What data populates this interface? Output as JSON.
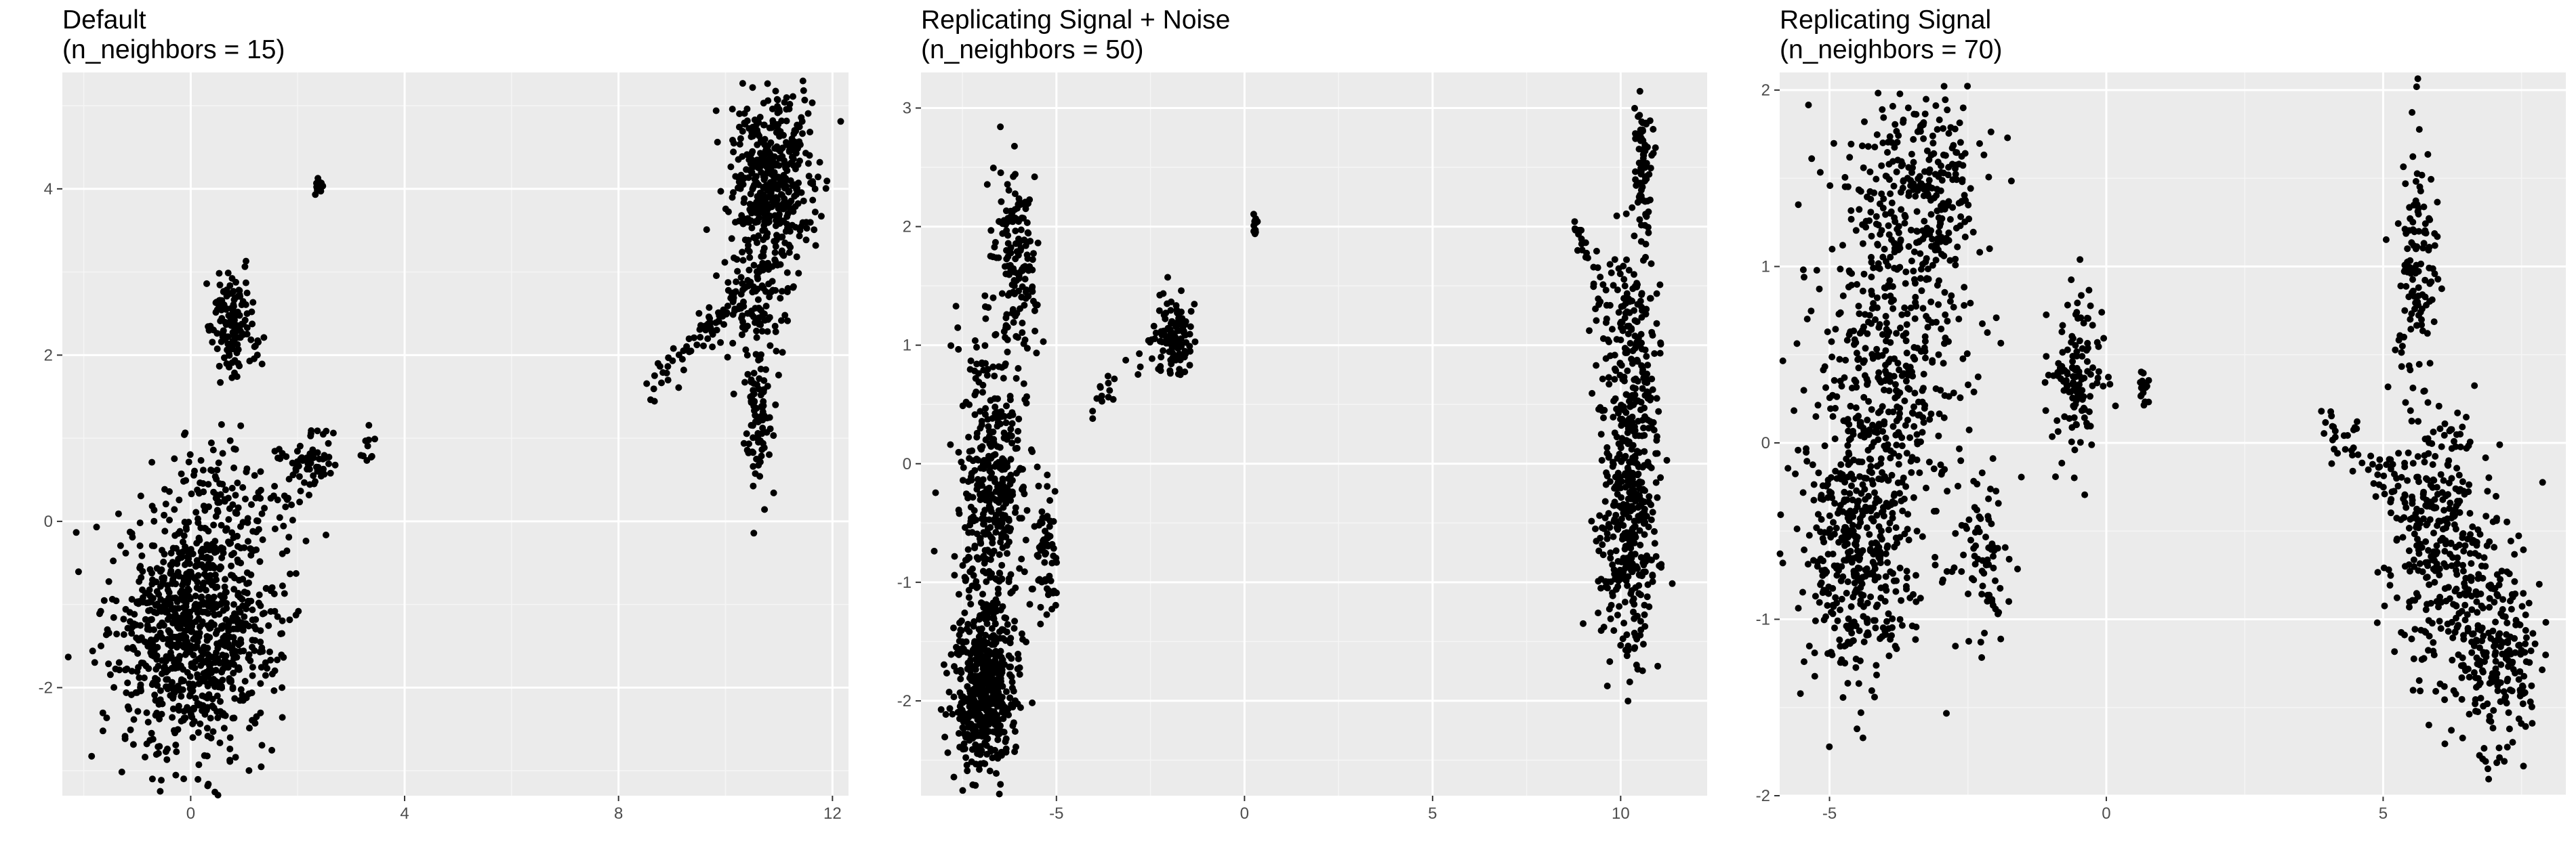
{
  "chart_data": [
    {
      "type": "scatter",
      "title": "Default",
      "subtitle": "(n_neighbors = 15)",
      "xlabel": "",
      "ylabel": "",
      "xlim": [
        -2.4,
        12.3
      ],
      "ylim": [
        -3.3,
        5.4
      ],
      "xticks": [
        0,
        4,
        8,
        12
      ],
      "xtick_labels": [
        "0",
        "4",
        "8",
        "12"
      ],
      "yticks": [
        -2,
        0,
        2,
        4
      ],
      "ytick_labels": [
        "-2",
        "0",
        "2",
        "4"
      ],
      "grid": true,
      "clusters": [
        {
          "cx": 0.1,
          "cy": -1.3,
          "sx": 0.75,
          "sy": 0.75,
          "n": 950
        },
        {
          "cx": 0.5,
          "cy": 0.4,
          "sx": 0.45,
          "sy": 0.35,
          "n": 60
        },
        {
          "cx": 0.8,
          "cy": 2.35,
          "sx": 0.22,
          "sy": 0.3,
          "n": 150
        },
        {
          "cx": 2.2,
          "cy": 0.75,
          "sx": 0.3,
          "sy": 0.2,
          "n": 60
        },
        {
          "cx": 1.5,
          "cy": 0.3,
          "sx": 0.45,
          "sy": 0.45,
          "n": 40
        },
        {
          "cx": 3.3,
          "cy": 0.9,
          "sx": 0.08,
          "sy": 0.1,
          "n": 10
        },
        {
          "cx": 2.4,
          "cy": 4.05,
          "sx": 0.05,
          "sy": 0.06,
          "n": 15
        },
        {
          "cx": 10.9,
          "cy": 4.1,
          "sx": 0.4,
          "sy": 0.5,
          "n": 430
        },
        {
          "cx": 10.5,
          "cy": 2.7,
          "sx": 0.35,
          "sy": 0.35,
          "n": 110
        },
        {
          "cx": 10.6,
          "cy": 1.3,
          "sx": 0.12,
          "sy": 0.45,
          "n": 90
        },
        {
          "line": [
            [
              8.5,
              1.5
            ],
            [
              10.5,
              2.9
            ]
          ],
          "spread": 0.1,
          "n": 70
        }
      ]
    },
    {
      "type": "scatter",
      "title": "Replicating Signal + Noise",
      "subtitle": "(n_neighbors = 50)",
      "xlabel": "",
      "ylabel": "",
      "xlim": [
        -8.6,
        12.3
      ],
      "ylim": [
        -2.8,
        3.3
      ],
      "xticks": [
        -5,
        0,
        5,
        10
      ],
      "xtick_labels": [
        "-5",
        "0",
        "5",
        "10"
      ],
      "yticks": [
        -2,
        -1,
        0,
        1,
        2,
        3
      ],
      "ytick_labels": [
        "-2",
        "-1",
        "0",
        "1",
        "2",
        "3"
      ],
      "grid": true,
      "clusters": [
        {
          "cx": -6.9,
          "cy": -1.9,
          "sx": 0.4,
          "sy": 0.35,
          "n": 480
        },
        {
          "cx": -6.7,
          "cy": -0.3,
          "sx": 0.45,
          "sy": 0.7,
          "n": 420
        },
        {
          "cx": -6.1,
          "cy": 1.7,
          "sx": 0.3,
          "sy": 0.4,
          "n": 150
        },
        {
          "cx": -5.3,
          "cy": -0.75,
          "sx": 0.15,
          "sy": 0.3,
          "n": 60
        },
        {
          "cx": -1.9,
          "cy": 1.05,
          "sx": 0.25,
          "sy": 0.18,
          "n": 110
        },
        {
          "line": [
            [
              -4.1,
              0.5
            ],
            [
              -2.4,
              1.0
            ]
          ],
          "spread": 0.08,
          "n": 20
        },
        {
          "cx": 0.3,
          "cy": 2.02,
          "sx": 0.04,
          "sy": 0.05,
          "n": 12
        },
        {
          "cx": 10.2,
          "cy": -0.5,
          "sx": 0.4,
          "sy": 0.55,
          "n": 380
        },
        {
          "cx": 10.2,
          "cy": 1.0,
          "sx": 0.4,
          "sy": 0.5,
          "n": 180
        },
        {
          "cx": 10.6,
          "cy": 2.55,
          "sx": 0.12,
          "sy": 0.3,
          "n": 80
        },
        {
          "line": [
            [
              8.7,
              2.1
            ],
            [
              9.7,
              1.2
            ]
          ],
          "spread": 0.06,
          "n": 25
        }
      ]
    },
    {
      "type": "scatter",
      "title": "Replicating Signal",
      "subtitle": "(n_neighbors = 70)",
      "xlabel": "",
      "ylabel": "",
      "xlim": [
        -5.9,
        8.3
      ],
      "ylim": [
        -2.0,
        2.1
      ],
      "xticks": [
        -5,
        0,
        5
      ],
      "xtick_labels": [
        "-5",
        "0",
        "5"
      ],
      "yticks": [
        -2,
        -1,
        0,
        1,
        2
      ],
      "ytick_labels": [
        "-2",
        "-1",
        "0",
        "1",
        "2"
      ],
      "grid": true,
      "clusters": [
        {
          "cx": -4.5,
          "cy": -0.7,
          "sx": 0.5,
          "sy": 0.35,
          "n": 330
        },
        {
          "cx": -4.0,
          "cy": 0.3,
          "sx": 0.7,
          "sy": 0.6,
          "n": 500
        },
        {
          "cx": -3.3,
          "cy": 1.45,
          "sx": 0.6,
          "sy": 0.28,
          "n": 260
        },
        {
          "cx": -2.3,
          "cy": -0.6,
          "sx": 0.25,
          "sy": 0.25,
          "n": 80
        },
        {
          "cx": -0.55,
          "cy": 0.4,
          "sx": 0.25,
          "sy": 0.25,
          "n": 130
        },
        {
          "cx": 0.7,
          "cy": 0.3,
          "sx": 0.06,
          "sy": 0.06,
          "n": 15
        },
        {
          "cx": 5.6,
          "cy": 1.0,
          "sx": 0.2,
          "sy": 0.35,
          "n": 120
        },
        {
          "cx": 6.1,
          "cy": -0.6,
          "sx": 0.5,
          "sy": 0.4,
          "n": 320
        },
        {
          "cx": 7.0,
          "cy": -1.2,
          "sx": 0.4,
          "sy": 0.3,
          "n": 220
        },
        {
          "line": [
            [
              3.9,
              0.15
            ],
            [
              6.0,
              -0.5
            ]
          ],
          "spread": 0.08,
          "n": 70
        }
      ]
    }
  ]
}
